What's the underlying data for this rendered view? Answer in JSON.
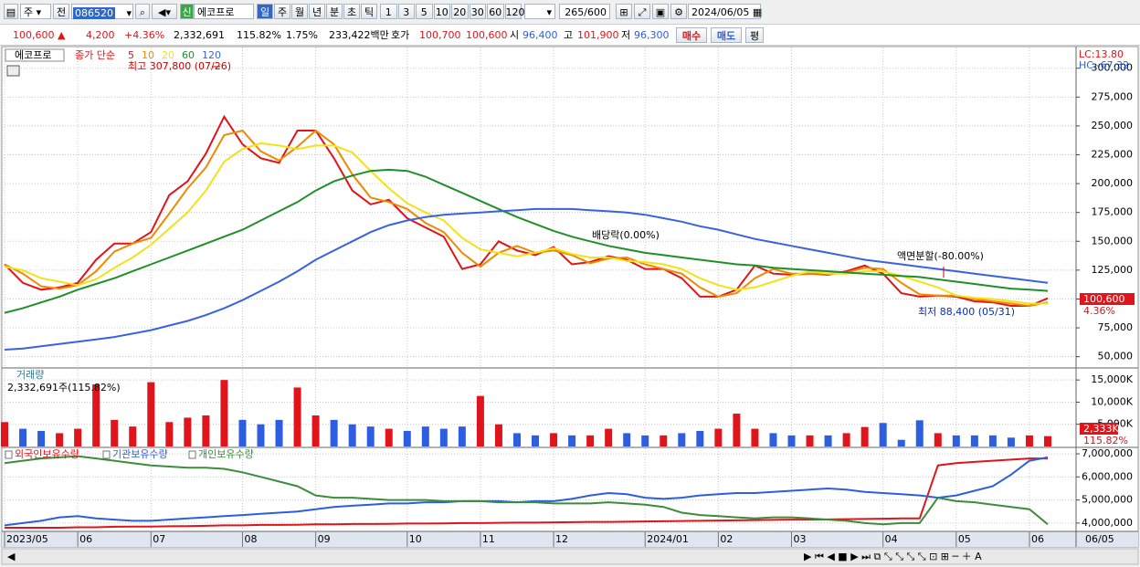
{
  "toolbar": {
    "market": "주",
    "prev": "전",
    "code": "086520",
    "new_tag": "신",
    "name": "에코프로",
    "periods": [
      "일",
      "주",
      "월",
      "년",
      "분",
      "초",
      "틱"
    ],
    "intervals": [
      "1",
      "3",
      "5",
      "10",
      "20",
      "30",
      "60",
      "120"
    ],
    "count": "265/600",
    "date": "2024/06/05"
  },
  "quote_bar": {
    "price": "100,600",
    "arrow": "▲",
    "change": "4,200",
    "change_pct": "+4.36%",
    "volume": "2,332,691",
    "volume_ratio": "115.82%",
    "turnover": "1.75%",
    "amount": "233,422백만",
    "bid_label": "호가",
    "ask": "100,700",
    "bid": "100,600",
    "open_label": "시",
    "open": "96,400",
    "high_label": "고",
    "high": "101,900",
    "low_label": "저",
    "low": "96,300",
    "buy": "매수",
    "sell": "매도",
    "avg": "평"
  },
  "chart_data": [
    {
      "type": "line",
      "title": "에코프로",
      "subtitle": "종가 단순",
      "series": [
        {
          "name": "5",
          "color": "#e0141b",
          "values": [
            130000,
            114000,
            108000,
            110000,
            114000,
            134000,
            148000,
            148000,
            158000,
            190000,
            202000,
            226000,
            258000,
            234000,
            222000,
            218000,
            246000,
            246000,
            222000,
            194000,
            182000,
            186000,
            170000,
            162000,
            154000,
            126000,
            130000,
            150000,
            142000,
            138000,
            145000,
            130000,
            132000,
            137000,
            134000,
            126000,
            126000,
            118000,
            102000,
            102000,
            108000,
            129000,
            122000,
            121000,
            122000,
            121000,
            124000,
            129000,
            122000,
            105000,
            102000,
            103000,
            102000,
            98000,
            97000,
            94000,
            94000,
            100600
          ]
        },
        {
          "name": "10",
          "color": "#f08a00",
          "values": [
            130000,
            122000,
            111000,
            109000,
            112000,
            124000,
            141000,
            148000,
            153000,
            174000,
            196000,
            214000,
            242000,
            246000,
            228000,
            220000,
            232000,
            246000,
            234000,
            208000,
            188000,
            184000,
            178000,
            166000,
            158000,
            140000,
            128000,
            140000,
            146000,
            140000,
            142000,
            138000,
            131000,
            135000,
            136000,
            130000,
            126000,
            122000,
            110000,
            102000,
            105000,
            118000,
            126000,
            122000,
            122000,
            122000,
            123000,
            127000,
            126000,
            114000,
            104000,
            103000,
            103000,
            100000,
            98000,
            96000,
            94000,
            97000
          ]
        },
        {
          "name": "20",
          "color": "#f2e21a",
          "values": [
            128000,
            125000,
            118000,
            115000,
            112000,
            117000,
            127000,
            136000,
            147000,
            161000,
            175000,
            194000,
            219000,
            230000,
            235000,
            233000,
            230000,
            233000,
            233000,
            227000,
            211000,
            196000,
            183000,
            175000,
            168000,
            153000,
            143000,
            140000,
            137000,
            140000,
            144000,
            139000,
            136000,
            136000,
            133000,
            132000,
            130000,
            126000,
            118000,
            112000,
            108000,
            110000,
            115000,
            120000,
            124000,
            122000,
            122000,
            124000,
            124000,
            120000,
            115000,
            110000,
            103000,
            101000,
            100000,
            98000,
            96000,
            96000
          ]
        },
        {
          "name": "60",
          "color": "#1f8f2a",
          "values": [
            88000,
            92000,
            97000,
            102000,
            108000,
            113000,
            118000,
            124000,
            130000,
            136000,
            142000,
            148000,
            154000,
            160000,
            168000,
            176000,
            184000,
            194000,
            202000,
            207000,
            211000,
            212000,
            211000,
            206000,
            199000,
            192000,
            185000,
            178000,
            171000,
            165000,
            159000,
            154000,
            150000,
            146000,
            143000,
            140000,
            138000,
            136000,
            134000,
            132000,
            130000,
            129000,
            127000,
            126000,
            125000,
            124000,
            123000,
            122000,
            121000,
            120000,
            119000,
            117000,
            115000,
            113000,
            111000,
            109000,
            108000,
            107000
          ]
        },
        {
          "name": "120",
          "color": "#3a62e0",
          "values": [
            56000,
            57000,
            59000,
            61000,
            63000,
            65000,
            67000,
            70000,
            73000,
            77000,
            81000,
            86000,
            92000,
            99000,
            107000,
            115000,
            124000,
            134000,
            142000,
            150000,
            158000,
            164000,
            168000,
            171000,
            173000,
            174000,
            175000,
            176000,
            177000,
            178000,
            178000,
            178000,
            177000,
            176000,
            175000,
            173000,
            170000,
            167000,
            163000,
            160000,
            156000,
            152000,
            149000,
            146000,
            143000,
            140000,
            137000,
            134000,
            132000,
            130000,
            128000,
            126000,
            124000,
            122000,
            120000,
            118000,
            116000,
            114000
          ]
        }
      ],
      "ylim": [
        41000,
        318000
      ],
      "yticks": [
        {
          "value": 50000,
          "label": "50,000"
        },
        {
          "value": 75000,
          "label": "75,000"
        },
        {
          "value": 100000,
          "label": "100,000"
        },
        {
          "value": 125000,
          "label": "125,000"
        },
        {
          "value": 150000,
          "label": "150,000"
        },
        {
          "value": 175000,
          "label": "175,000"
        },
        {
          "value": 200000,
          "label": "200,000"
        },
        {
          "value": 225000,
          "label": "225,000"
        },
        {
          "value": 250000,
          "label": "250,000"
        },
        {
          "value": 275000,
          "label": "275,000"
        },
        {
          "value": 300000,
          "label": "300,000"
        }
      ],
      "grid": true,
      "annotations": {
        "high": "최고 307,800 (07/26)",
        "dividend": "배당락(0.00%)",
        "split": "액면분할(-80.00%)",
        "low": "최저 88,400 (05/31)",
        "lc": "LC:13.80",
        "hc": "HC:-67.32",
        "last_price": "100,600",
        "last_change": "4.36%"
      }
    },
    {
      "type": "bar",
      "title": "거래량",
      "subtitle": "2,332,691주(115.82%)",
      "up_color": "#e0141b",
      "down_color": "#2d5ee0",
      "values": [
        5500,
        4000,
        3500,
        3000,
        4000,
        14000,
        6000,
        4500,
        14500,
        5500,
        6500,
        7000,
        15000,
        6000,
        5000,
        6000,
        13300,
        7000,
        6000,
        5000,
        4500,
        4000,
        3500,
        4500,
        4000,
        4500,
        11400,
        5000,
        3000,
        2500,
        3000,
        2500,
        2500,
        4000,
        3000,
        2500,
        2500,
        3000,
        3500,
        4000,
        7400,
        4000,
        3000,
        2500,
        2500,
        2500,
        3000,
        4400,
        5300,
        1500,
        5900,
        3000,
        2500,
        2500,
        2500,
        2000,
        2500,
        2332.691
      ],
      "ylim": [
        0,
        17300
      ],
      "yticks": [
        {
          "value": 5000,
          "label": "5,000K"
        },
        {
          "value": 10000,
          "label": "10,000K"
        },
        {
          "value": 15000,
          "label": "15,000K"
        }
      ],
      "grid": true,
      "annotations": {
        "last_volume": "2,333K",
        "last_ratio": "115.82%"
      }
    },
    {
      "type": "line",
      "categories": [
        "2023/05",
        null,
        null,
        null,
        "06",
        null,
        null,
        null,
        "07",
        null,
        null,
        null,
        null,
        "08",
        null,
        null,
        null,
        "09",
        null,
        null,
        null,
        null,
        "10",
        null,
        null,
        null,
        "11",
        null,
        null,
        null,
        "12",
        null,
        null,
        null,
        null,
        "2024/01",
        null,
        null,
        null,
        "02",
        null,
        null,
        null,
        "03",
        null,
        null,
        null,
        null,
        "04",
        null,
        null,
        null,
        "05",
        null,
        null,
        null,
        "06",
        null
      ],
      "x_end_label": "06/05",
      "series": [
        {
          "name": "외국인보유수량",
          "color": "#e0141b",
          "values": [
            3800000,
            3800000,
            3800000,
            3800000,
            3820000,
            3820000,
            3840000,
            3850000,
            3850000,
            3860000,
            3870000,
            3880000,
            3900000,
            3900000,
            3920000,
            3920000,
            3930000,
            3950000,
            3950000,
            3960000,
            3960000,
            3970000,
            3980000,
            3980000,
            3990000,
            4000000,
            4000000,
            4010000,
            4020000,
            4020000,
            4030000,
            4040000,
            4050000,
            4050000,
            4060000,
            4070000,
            4080000,
            4090000,
            4100000,
            4110000,
            4120000,
            4130000,
            4140000,
            4150000,
            4150000,
            4160000,
            4170000,
            4180000,
            4190000,
            4200000,
            4200000,
            6500000,
            6600000,
            6650000,
            6700000,
            6750000,
            6800000,
            6800000
          ]
        },
        {
          "name": "기관보유수량",
          "color": "#2d5ee0",
          "values": [
            3900000,
            4000000,
            4100000,
            4250000,
            4300000,
            4200000,
            4150000,
            4100000,
            4100000,
            4150000,
            4200000,
            4250000,
            4300000,
            4350000,
            4400000,
            4450000,
            4500000,
            4600000,
            4700000,
            4750000,
            4800000,
            4850000,
            4850000,
            4900000,
            4900000,
            4950000,
            4950000,
            4950000,
            4900000,
            4950000,
            4950000,
            5050000,
            5200000,
            5300000,
            5250000,
            5100000,
            5050000,
            5100000,
            5200000,
            5250000,
            5300000,
            5300000,
            5350000,
            5400000,
            5450000,
            5500000,
            5450000,
            5350000,
            5300000,
            5250000,
            5200000,
            5100000,
            5200000,
            5400000,
            5600000,
            6100000,
            6700000,
            6850000
          ]
        },
        {
          "name": "개인보유수량",
          "color": "#3c8c3c",
          "values": [
            6600000,
            6700000,
            6800000,
            6850000,
            6900000,
            6800000,
            6700000,
            6600000,
            6500000,
            6450000,
            6400000,
            6400000,
            6350000,
            6200000,
            6000000,
            5800000,
            5600000,
            5200000,
            5100000,
            5100000,
            5050000,
            5000000,
            5000000,
            5000000,
            4950000,
            4950000,
            4950000,
            4900000,
            4900000,
            4900000,
            4850000,
            4850000,
            4850000,
            4900000,
            4850000,
            4800000,
            4700000,
            4450000,
            4350000,
            4300000,
            4250000,
            4200000,
            4250000,
            4250000,
            4200000,
            4150000,
            4100000,
            4000000,
            3950000,
            4000000,
            4000000,
            5100000,
            4950000,
            4900000,
            4800000,
            4700000,
            4600000,
            3950000
          ]
        }
      ],
      "ylim": [
        3640000,
        7240000
      ],
      "yticks": [
        {
          "value": 4000000,
          "label": "4,000,000"
        },
        {
          "value": 5000000,
          "label": "5,000,000"
        },
        {
          "value": 6000000,
          "label": "6,000,000"
        },
        {
          "value": 7000000,
          "label": "7,000,000"
        }
      ],
      "grid": true
    }
  ]
}
